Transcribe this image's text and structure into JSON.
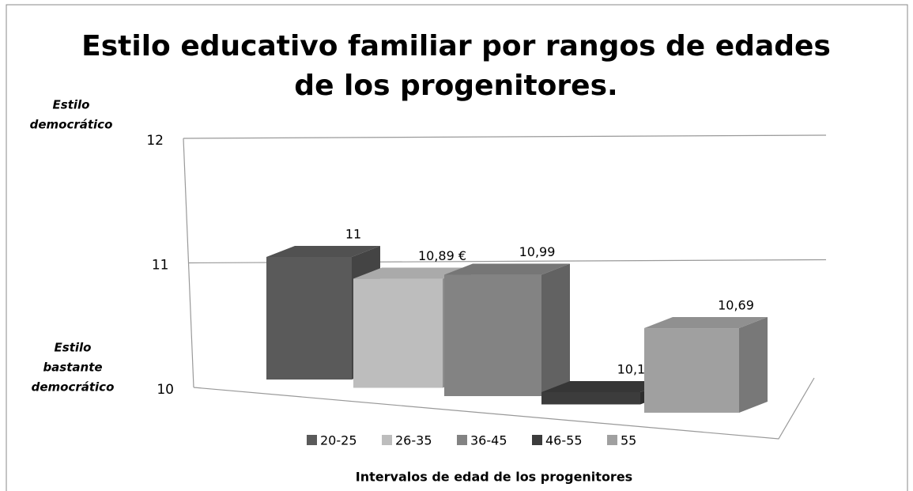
{
  "chart_data": {
    "type": "bar3d",
    "title": [
      "Estilo educativo familiar por rangos de edades",
      "de los progenitores."
    ],
    "annotations": [
      [
        "Estilo",
        "democrático"
      ],
      [
        "Estilo",
        "bastante",
        "democrático"
      ]
    ],
    "x_label": "Intervalos de edad de los progenitores",
    "ylim": [
      10,
      12
    ],
    "yticks": [
      10,
      11,
      12
    ],
    "grid": true,
    "series": [
      {
        "name": "20-25",
        "color": "#5a5a5a",
        "values": [
          11
        ],
        "value_labels": [
          "11"
        ]
      },
      {
        "name": "26-35",
        "color": "#bdbdbd",
        "values": [
          10.89
        ],
        "value_labels": [
          "10,89 €"
        ]
      },
      {
        "name": "36-45",
        "color": "#838383",
        "values": [
          10.99
        ],
        "value_labels": [
          "10,99"
        ]
      },
      {
        "name": "46-55",
        "color": "#3c3c3c",
        "values": [
          10.1
        ],
        "value_labels": [
          "10,10"
        ]
      },
      {
        "name": "55",
        "color": "#a0a0a0",
        "values": [
          10.69
        ],
        "value_labels": [
          "10,69"
        ]
      }
    ]
  }
}
